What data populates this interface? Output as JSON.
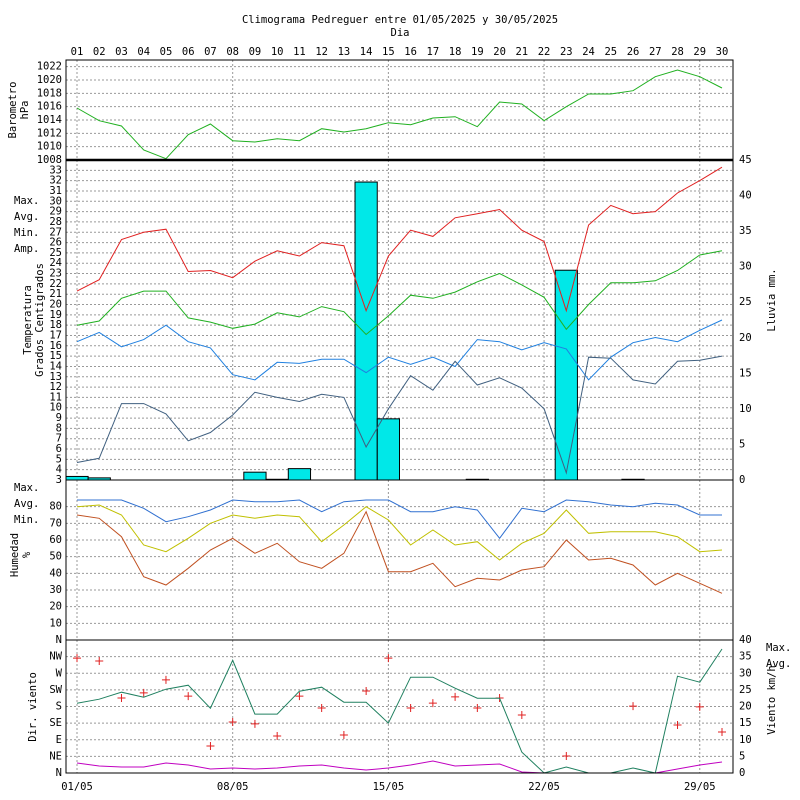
{
  "chart_data": [
    {
      "type": "line",
      "title": "Climograma Pedreguer entre 01/05/2025 y 30/05/2025",
      "xlabel": "Dia",
      "x": [
        1,
        2,
        3,
        4,
        5,
        6,
        7,
        8,
        9,
        10,
        11,
        12,
        13,
        14,
        15,
        16,
        17,
        18,
        19,
        20,
        21,
        22,
        23,
        24,
        25,
        26,
        27,
        28,
        29,
        30
      ],
      "xticks": [
        {
          "value": 1,
          "label": "01"
        },
        {
          "value": 2,
          "label": "02"
        },
        {
          "value": 3,
          "label": "03"
        },
        {
          "value": 4,
          "label": "04"
        },
        {
          "value": 5,
          "label": "05"
        },
        {
          "value": 6,
          "label": "06"
        },
        {
          "value": 7,
          "label": "07"
        },
        {
          "value": 8,
          "label": "08"
        },
        {
          "value": 9,
          "label": "09"
        },
        {
          "value": 10,
          "label": "10"
        },
        {
          "value": 11,
          "label": "11"
        },
        {
          "value": 12,
          "label": "12"
        },
        {
          "value": 13,
          "label": "13"
        },
        {
          "value": 14,
          "label": "14"
        },
        {
          "value": 15,
          "label": "15"
        },
        {
          "value": 16,
          "label": "16"
        },
        {
          "value": 17,
          "label": "17"
        },
        {
          "value": 18,
          "label": "18"
        },
        {
          "value": 19,
          "label": "19"
        },
        {
          "value": 20,
          "label": "20"
        },
        {
          "value": 21,
          "label": "21"
        },
        {
          "value": 22,
          "label": "22"
        },
        {
          "value": 23,
          "label": "23"
        },
        {
          "value": 24,
          "label": "24"
        },
        {
          "value": 25,
          "label": "25"
        },
        {
          "value": 26,
          "label": "26"
        },
        {
          "value": 27,
          "label": "27"
        },
        {
          "value": 28,
          "label": "28"
        },
        {
          "value": 29,
          "label": "29"
        },
        {
          "value": 30,
          "label": "30"
        }
      ],
      "ylabel": [
        "Barometro",
        "hPa"
      ],
      "ylabel_color": "#20b020",
      "ylim": [
        1008,
        1023
      ],
      "yticks": [
        1008,
        1010,
        1012,
        1014,
        1016,
        1018,
        1020,
        1022
      ],
      "grid": true,
      "series": [
        {
          "color": "#20b020",
          "values": [
            1015.8,
            1013.9,
            1013.1,
            1009.5,
            1008.2,
            1011.8,
            1013.4,
            1010.9,
            1010.7,
            1011.2,
            1010.9,
            1012.7,
            1012.2,
            1012.7,
            1013.6,
            1013.3,
            1014.3,
            1014.5,
            1013.0,
            1016.7,
            1016.4,
            1013.9,
            1016.0,
            1017.9,
            1017.9,
            1018.4,
            1020.5,
            1021.5,
            1020.5,
            1018.8
          ]
        }
      ]
    },
    {
      "type": "combo",
      "x": [
        1,
        2,
        3,
        4,
        5,
        6,
        7,
        8,
        9,
        10,
        11,
        12,
        13,
        14,
        15,
        16,
        17,
        18,
        19,
        20,
        21,
        22,
        23,
        24,
        25,
        26,
        27,
        28,
        29,
        30
      ],
      "ylabel": [
        "Temperatura",
        "Grados Centigrados"
      ],
      "ylabel_color": "#e02020",
      "y2label": [
        "Lluvia mm."
      ],
      "y2label_color": "#00c8d0",
      "ylim": [
        3,
        34
      ],
      "yticks": [
        3,
        4,
        5,
        6,
        7,
        8,
        9,
        10,
        11,
        12,
        13,
        14,
        15,
        16,
        17,
        18,
        19,
        20,
        21,
        22,
        23,
        24,
        25,
        26,
        27,
        28,
        29,
        30,
        31,
        32,
        33
      ],
      "y2lim": [
        0,
        45
      ],
      "y2ticks": [
        0,
        5,
        10,
        15,
        20,
        25,
        30,
        35,
        40,
        45
      ],
      "grid": true,
      "legend": "left",
      "series": [
        {
          "name": "Max.",
          "type": "line",
          "color": "#e02020",
          "values": [
            21.3,
            22.4,
            26.3,
            27.0,
            27.3,
            23.2,
            23.3,
            22.6,
            24.2,
            25.2,
            24.7,
            26.0,
            25.7,
            19.4,
            24.7,
            27.2,
            26.6,
            28.4,
            28.8,
            29.2,
            27.2,
            26.1,
            19.4,
            27.7,
            29.6,
            28.8,
            29.0,
            30.8,
            32.0,
            33.3
          ]
        },
        {
          "name": "Avg.",
          "type": "line",
          "color": "#20b020",
          "values": [
            18.0,
            18.4,
            20.6,
            21.3,
            21.3,
            18.7,
            18.3,
            17.7,
            18.1,
            19.2,
            18.8,
            19.8,
            19.3,
            17.1,
            18.9,
            20.9,
            20.6,
            21.2,
            22.2,
            23.0,
            21.9,
            20.7,
            17.6,
            20.0,
            22.1,
            22.1,
            22.3,
            23.3,
            24.8,
            25.2
          ]
        },
        {
          "name": "Min.",
          "type": "line",
          "color": "#2080e0",
          "values": [
            16.4,
            17.3,
            15.9,
            16.6,
            18.0,
            16.4,
            15.8,
            13.2,
            12.7,
            14.4,
            14.3,
            14.7,
            14.7,
            13.4,
            14.9,
            14.2,
            14.9,
            14.0,
            16.6,
            16.4,
            15.6,
            16.3,
            15.7,
            12.7,
            14.9,
            16.3,
            16.8,
            16.4,
            17.5,
            18.5
          ]
        },
        {
          "name": "Amp.",
          "type": "line",
          "color": "#406080",
          "values": [
            4.7,
            5.1,
            10.4,
            10.4,
            9.4,
            6.8,
            7.6,
            9.3,
            11.5,
            11.0,
            10.6,
            11.3,
            11.0,
            6.2,
            9.9,
            13.1,
            11.7,
            14.5,
            12.2,
            12.9,
            11.9,
            9.9,
            3.7,
            14.9,
            14.8,
            12.7,
            12.3,
            14.5,
            14.6,
            15.0
          ]
        },
        {
          "type": "bar",
          "axis": "y2",
          "color": "#00e8e8",
          "values": [
            0.5,
            0.3,
            0,
            0,
            0,
            0,
            0,
            0,
            1.1,
            0.1,
            1.6,
            0,
            0,
            41.9,
            8.6,
            0,
            0,
            0,
            0.1,
            0,
            0,
            0,
            29.5,
            0,
            0,
            0.1,
            0,
            0,
            0,
            0
          ]
        }
      ]
    },
    {
      "type": "line",
      "x": [
        1,
        2,
        3,
        4,
        5,
        6,
        7,
        8,
        9,
        10,
        11,
        12,
        13,
        14,
        15,
        16,
        17,
        18,
        19,
        20,
        21,
        22,
        23,
        24,
        25,
        26,
        27,
        28,
        29,
        30
      ],
      "ylabel": [
        "Humedad",
        "%"
      ],
      "ylabel_color": "#c05020",
      "ylim": [
        0,
        96
      ],
      "yticks": [
        10,
        20,
        30,
        40,
        50,
        60,
        70,
        80
      ],
      "grid": true,
      "legend": "left",
      "series": [
        {
          "name": "Max.",
          "color": "#3070d0",
          "values": [
            84,
            84,
            84,
            79,
            71,
            74,
            78,
            84,
            83,
            83,
            84,
            77,
            83,
            84,
            84,
            77,
            77,
            80,
            78,
            61,
            79,
            77,
            84,
            83,
            81,
            80,
            82,
            81,
            75,
            75
          ]
        },
        {
          "name": "Avg.",
          "color": "#c0c000",
          "values": [
            80,
            81,
            75,
            57,
            53,
            61,
            70,
            75,
            73,
            75,
            74,
            59,
            69,
            80,
            72,
            57,
            66,
            57,
            59,
            48,
            58,
            64,
            78,
            64,
            65,
            65,
            65,
            62,
            53,
            54
          ]
        },
        {
          "name": "Min.",
          "color": "#c05020",
          "values": [
            75,
            73,
            62,
            38,
            33,
            43,
            54,
            61,
            52,
            58,
            47,
            43,
            52,
            77,
            41,
            41,
            46,
            32,
            37,
            36,
            42,
            44,
            60,
            48,
            49,
            45,
            33,
            40,
            34,
            28
          ]
        }
      ]
    },
    {
      "type": "combo",
      "x": [
        1,
        2,
        3,
        4,
        5,
        6,
        7,
        8,
        9,
        10,
        11,
        12,
        13,
        14,
        15,
        16,
        17,
        18,
        19,
        20,
        21,
        22,
        23,
        24,
        25,
        26,
        27,
        28,
        29,
        30
      ],
      "xticks": [
        {
          "value": 1,
          "label": "01/05"
        },
        {
          "value": 8,
          "label": "08/05"
        },
        {
          "value": 15,
          "label": "15/05"
        },
        {
          "value": 22,
          "label": "22/05"
        },
        {
          "value": 29,
          "label": "29/05"
        }
      ],
      "ylabel": [
        "Dir. viento"
      ],
      "ylabel_color": "#e02020",
      "y2label": [
        "Viento km/h"
      ],
      "y2label_color": "#c000c0",
      "ylim": [
        0,
        360
      ],
      "yticks": [
        {
          "value": 0,
          "label": "N"
        },
        {
          "value": 45,
          "label": "NE"
        },
        {
          "value": 90,
          "label": "E"
        },
        {
          "value": 135,
          "label": "SE"
        },
        {
          "value": 180,
          "label": "S"
        },
        {
          "value": 225,
          "label": "SW"
        },
        {
          "value": 270,
          "label": "W"
        },
        {
          "value": 315,
          "label": "NW"
        },
        {
          "value": 360,
          "label": "N"
        }
      ],
      "y2lim": [
        0,
        40
      ],
      "y2ticks": [
        0,
        5,
        10,
        15,
        20,
        25,
        30,
        35,
        40
      ],
      "grid": true,
      "legend": "right",
      "series": [
        {
          "type": "scatter",
          "color": "#e02020",
          "values": [
            311,
            303,
            203,
            217,
            252,
            208,
            73,
            138,
            133,
            100,
            208,
            176,
            103,
            222,
            311,
            176,
            189,
            206,
            176,
            203,
            157,
            null,
            46,
            null,
            null,
            181,
            null,
            130,
            179,
            111
          ]
        },
        {
          "name": "Max.",
          "type": "line",
          "axis": "y2",
          "color": "#208060",
          "values": [
            21.0,
            22.2,
            24.3,
            22.8,
            25.2,
            26.4,
            19.5,
            33.9,
            17.7,
            17.7,
            24.6,
            25.8,
            21.3,
            21.3,
            15.0,
            28.8,
            28.8,
            25.5,
            22.5,
            22.5,
            6.3,
            0,
            1.8,
            0,
            0,
            1.5,
            0,
            29.1,
            27.3,
            37.3
          ]
        },
        {
          "name": "Avg.",
          "type": "line",
          "axis": "y2",
          "color": "#c000c0",
          "values": [
            3.0,
            2.1,
            1.8,
            1.8,
            3.0,
            2.4,
            1.2,
            1.5,
            1.2,
            1.5,
            2.1,
            2.4,
            1.5,
            0.9,
            1.5,
            2.4,
            3.6,
            2.1,
            2.4,
            2.7,
            0.3,
            0,
            0,
            0,
            0,
            0,
            0,
            1.2,
            2.4,
            3.3
          ]
        }
      ]
    }
  ]
}
